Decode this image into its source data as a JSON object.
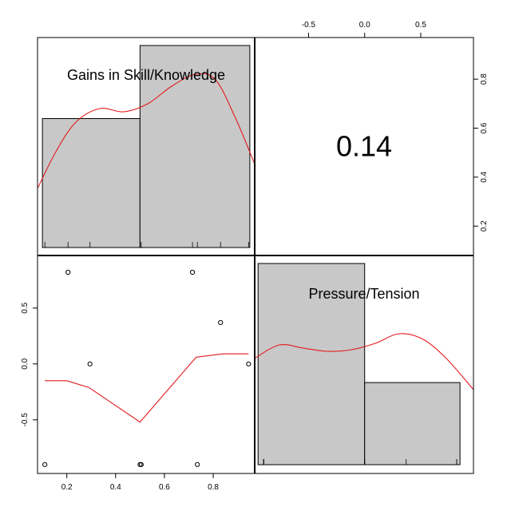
{
  "chart_data": {
    "type": "scatter",
    "variables": [
      "Gains in Skill/Knowledge",
      "Pressure/Tension"
    ],
    "correlation_label": "0.14",
    "panel_top_left": {
      "type": "bar",
      "label": "Gains in Skill/Knowledge",
      "bins": [
        [
          0.1,
          0.5
        ],
        [
          0.5,
          0.95
        ]
      ],
      "heights": [
        0.6,
        0.94
      ],
      "density_line_color": "#e31a1c"
    },
    "panel_bottom_right": {
      "type": "bar",
      "label": "Pressure/Tension",
      "bins": [
        [
          -0.95,
          0.0
        ],
        [
          0.0,
          0.85
        ]
      ],
      "heights": [
        0.98,
        0.4
      ],
      "density_line_color": "#e31a1c"
    },
    "panel_bottom_left": {
      "type": "scatter",
      "x": [
        0.11,
        0.205,
        0.295,
        0.5,
        0.505,
        0.715,
        0.735,
        0.83,
        0.945
      ],
      "y": [
        -0.9,
        0.82,
        0.0,
        -0.9,
        -0.9,
        0.82,
        -0.9,
        0.37,
        0.0
      ],
      "smoother_x": [
        0.11,
        0.2,
        0.29,
        0.5,
        0.73,
        0.84,
        0.945
      ],
      "smoother_y": [
        -0.15,
        -0.15,
        -0.21,
        -0.52,
        0.06,
        0.09,
        0.09
      ],
      "smoother_color": "#e31a1c"
    },
    "axes": {
      "x_bottom": {
        "ticks": [
          "0.2",
          "0.4",
          "0.6",
          "0.8"
        ],
        "range": [
          0.08,
          0.97
        ]
      },
      "x_top": {
        "ticks": [
          "-0.5",
          "0.0",
          "0.5"
        ],
        "range": [
          -0.98,
          0.97
        ]
      },
      "y_left": {
        "ticks": [
          "-0.5",
          "0.0",
          "0.5"
        ],
        "range": [
          -0.98,
          0.97
        ]
      },
      "y_right": {
        "ticks": [
          "0.2",
          "0.4",
          "0.6",
          "0.8"
        ],
        "range": [
          0.08,
          0.97
        ]
      }
    }
  }
}
